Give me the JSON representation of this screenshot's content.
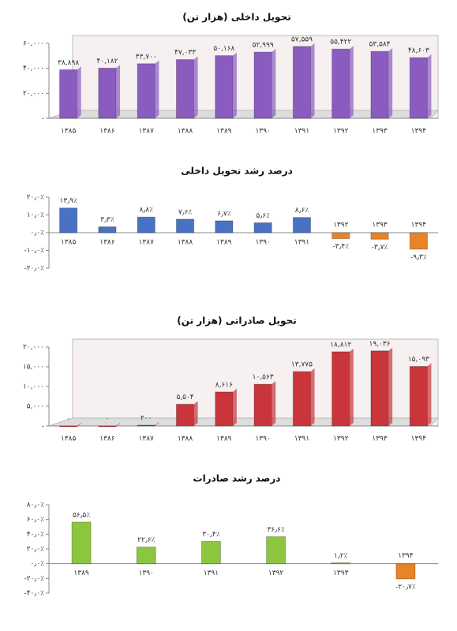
{
  "chart_data": [
    {
      "type": "bar",
      "title": "تحویل داخلی (هزار تن)",
      "categories": [
        "۱۳۸۵",
        "۱۳۸۶",
        "۱۳۸۷",
        "۱۳۸۸",
        "۱۳۸۹",
        "۱۳۹۰",
        "۱۳۹۱",
        "۱۳۹۲",
        "۱۳۹۳",
        "۱۳۹۴"
      ],
      "values": [
        38898,
        40182,
        43700,
        47033,
        50168,
        52999,
        57559,
        55422,
        53584,
        48603
      ],
      "value_labels": [
        "۳۸,۸۹۸",
        "۴۰,۱۸۲",
        "۴۳,۷۰۰",
        "۴۷,۰۳۳",
        "۵۰,۱۶۸",
        "۵۲,۹۹۹",
        "۵۷,۵۵۹",
        "۵۵,۴۲۲",
        "۵۳,۵۸۴",
        "۴۸,۶۰۳"
      ],
      "color": "#8a5cc0",
      "frame": true,
      "ylim": [
        0,
        60000
      ],
      "yticks": [
        {
          "value": 0,
          "label": "-"
        },
        {
          "value": 20000,
          "label": "۲۰,۰۰۰"
        },
        {
          "value": 40000,
          "label": "۴۰,۰۰۰"
        },
        {
          "value": 60000,
          "label": "۶۰,۰۰۰"
        }
      ]
    },
    {
      "type": "bar",
      "title": "درصد رشد تحویل داخلی",
      "categories": [
        "۱۳۸۵",
        "۱۳۸۶",
        "۱۳۸۷",
        "۱۳۸۸",
        "۱۳۸۹",
        "۱۳۹۰",
        "۱۳۹۱",
        "۱۳۹۲",
        "۱۳۹۳",
        "۱۳۹۴"
      ],
      "values": [
        13.9,
        3.3,
        8.8,
        7.6,
        6.7,
        5.6,
        8.6,
        -3.4,
        -3.7,
        -9.3
      ],
      "value_labels": [
        "۱۳٫۹٪",
        "۳٫۳٪",
        "۸٫۸٪",
        "۷٫۶٪",
        "۶٫۷٪",
        "۵٫۶٪",
        "۸٫۶٪",
        "-۳٫۴٪",
        "-۳٫۷٪",
        "-۹٫۳٪"
      ],
      "color": "#4a72c4",
      "negative_color": "#e8832a",
      "frame": false,
      "ylim": [
        -20,
        20
      ],
      "yticks": [
        {
          "value": -20,
          "label": "-۲۰٫۰٪"
        },
        {
          "value": -10,
          "label": "-۱۰٫۰٪"
        },
        {
          "value": 0,
          "label": "۰٫۰٪"
        },
        {
          "value": 10,
          "label": "۱۰٫۰٪"
        },
        {
          "value": 20,
          "label": "۲۰٫۰٪"
        }
      ]
    },
    {
      "type": "bar",
      "title": "تحویل صادراتی (هزار تن)",
      "categories": [
        "۱۳۸۵",
        "۱۳۸۶",
        "۱۳۸۷",
        "۱۳۸۸",
        "۱۳۸۹",
        "۱۳۹۰",
        "۱۳۹۱",
        "۱۳۹۲",
        "۱۳۹۳",
        "۱۳۹۴"
      ],
      "values": [
        0,
        0,
        200,
        5504,
        8616,
        10563,
        13775,
        18812,
        19036,
        15093
      ],
      "value_labels": [
        "۰",
        "۰",
        "۲۰۰",
        "۵,۵۰۴",
        "۸,۶۱۶",
        "۱۰,۵۶۳",
        "۱۳,۷۷۵",
        "۱۸,۸۱۲",
        "۱۹,۰۳۶",
        "۱۵,۰۹۳"
      ],
      "color": "#c9353a",
      "frame": true,
      "ylim": [
        0,
        20000
      ],
      "yticks": [
        {
          "value": 0,
          "label": "-"
        },
        {
          "value": 5000,
          "label": "۵,۰۰۰"
        },
        {
          "value": 10000,
          "label": "۱۰,۰۰۰"
        },
        {
          "value": 15000,
          "label": "۱۵,۰۰۰"
        },
        {
          "value": 20000,
          "label": "۲۰,۰۰۰"
        }
      ]
    },
    {
      "type": "bar",
      "title": "درصد رشد صادرات",
      "categories": [
        "۱۳۸۹",
        "۱۳۹۰",
        "۱۳۹۱",
        "۱۳۹۲",
        "۱۳۹۳",
        "۱۳۹۴"
      ],
      "values": [
        56.5,
        22.6,
        30.4,
        36.6,
        1.2,
        -20.7
      ],
      "value_labels": [
        "۵۶٫۵٪",
        "۲۲٫۶٪",
        "۳۰٫۴٪",
        "۳۶٫۶٪",
        "۱٫۲٪",
        "-۲۰٫۷٪"
      ],
      "color": "#8cc63f",
      "negative_color": "#e8832a",
      "frame": false,
      "ylim": [
        -40,
        80
      ],
      "yticks": [
        {
          "value": -40,
          "label": "-۴۰٫۰٪"
        },
        {
          "value": -20,
          "label": "-۲۰٫۰٪"
        },
        {
          "value": 0,
          "label": "۰٫۰٪"
        },
        {
          "value": 20,
          "label": "۲۰٫۰٪"
        },
        {
          "value": 40,
          "label": "۴۰٫۰٪"
        },
        {
          "value": 60,
          "label": "۶۰٫۰٪"
        },
        {
          "value": 80,
          "label": "۸۰٫۰٪"
        }
      ]
    }
  ]
}
